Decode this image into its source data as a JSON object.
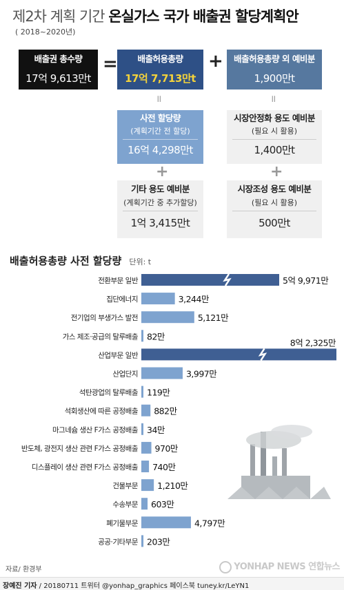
{
  "header": {
    "title_light": "제2차 계획 기간",
    "title_bold": "온실가스 국가 배출권 할당계획안",
    "subtitle": "( 2018~2020년)"
  },
  "top_boxes": {
    "total": {
      "label": "배출권 총수량",
      "value": "17억 9,613만t"
    },
    "allow": {
      "label": "배출허용총량",
      "value": "17억 7,713만t"
    },
    "outside": {
      "label": "배출허용총량 외 예비분",
      "value": "1,900만t"
    },
    "pre": {
      "label": "사전 할당량",
      "sub": "(계획기간 전 할당)",
      "value": "16억 4,298만t"
    },
    "market_stab": {
      "label": "시장안정화 용도 예비분",
      "sub": "(필요 시 활용)",
      "value": "1,400만t"
    },
    "other": {
      "label": "기타 용도 예비분",
      "sub": "(계획기간 중 추가할당)",
      "value": "1억 3,415만t"
    },
    "market_make": {
      "label": "시장조성 용도 예비분",
      "sub": "(필요 시 활용)",
      "value": "500만t"
    }
  },
  "operators": {
    "equals": "=",
    "plus": "+",
    "equals_small": "॥",
    "plus_small": "+"
  },
  "section": {
    "title": "배출허용총량 사전 할당량",
    "unit": "단위: t"
  },
  "chart_data": {
    "type": "bar",
    "orientation": "horizontal",
    "title": "배출허용총량 사전 할당량",
    "unit": "단위: t",
    "categories": [
      "전환부문 일반",
      "집단에너지",
      "전기업의 부생가스 발전",
      "가스 제조·공급의 탈루배출",
      "산업부문 일반",
      "산업단지",
      "석탄광업의 탈루배출",
      "석회생산에 따른 공정배출",
      "마그네슘 생산 F가스 공정배출",
      "반도체, 광전지 생산 관련 F가스 공정배출",
      "디스플레이 생산 관련 F가스 공정배출",
      "건물부문",
      "수송부문",
      "폐기물부문",
      "공공·기타부문"
    ],
    "values": [
      599710000,
      32440000,
      51210000,
      820000,
      823250000,
      39970000,
      1190000,
      8820000,
      340000,
      9700000,
      7400000,
      12100000,
      6030000,
      47970000,
      2030000
    ],
    "labels": [
      "5억 9,971만",
      "3,244만",
      "5,121만",
      "82만",
      "8억 2,325만",
      "3,997만",
      "119만",
      "882만",
      "34만",
      "970만",
      "740만",
      "1,210만",
      "603만",
      "4,797만",
      "203만"
    ],
    "broken_axis": [
      0,
      4
    ],
    "colors": {
      "normal": "#7ea3cf",
      "large": "#3f5f93"
    }
  },
  "source": "자료/ 환경부",
  "footer": {
    "author": "장예진 기자",
    "rest": " / 20180711 트위터 @yonhap_graphics  페이스북 tuney.kr/LeYN1"
  },
  "logo": {
    "text": "YONHAP NEWS",
    "korean": "연합뉴스"
  },
  "colors": {
    "black": "#111111",
    "navy": "#2e5086",
    "slate": "#56789f",
    "light_blue": "#7ea3cf",
    "pale": "#f0f0f0",
    "gold": "#f3d23b"
  }
}
